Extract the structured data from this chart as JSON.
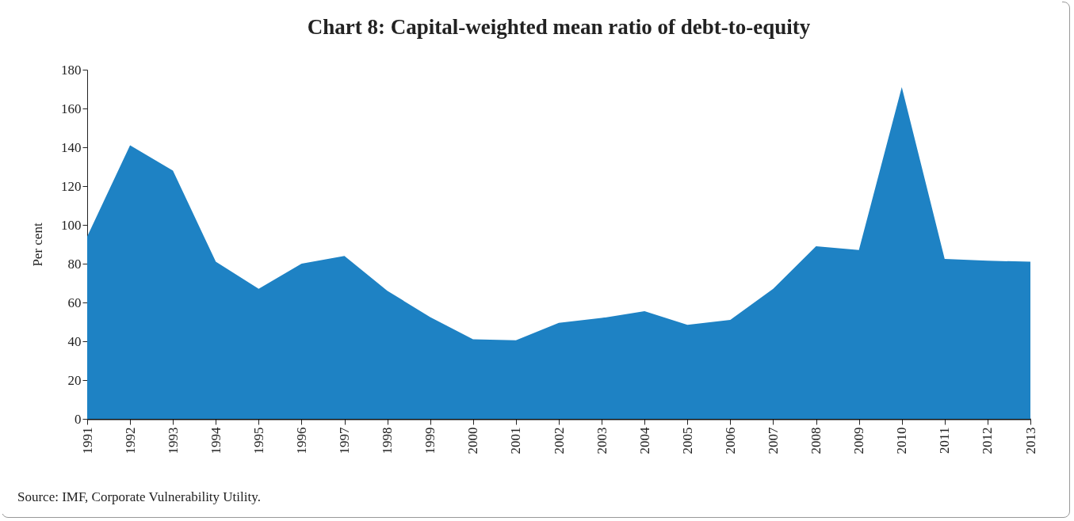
{
  "chart_data": {
    "type": "area",
    "title": "Chart 8: Capital-weighted mean ratio of debt-to-equity",
    "ylabel": "Per cent",
    "categories": [
      "1991",
      "1992",
      "1993",
      "1994",
      "1995",
      "1996",
      "1997",
      "1998",
      "1999",
      "2000",
      "2001",
      "2002",
      "2003",
      "2004",
      "2005",
      "2006",
      "2007",
      "2008",
      "2009",
      "2010",
      "2011",
      "2012",
      "2013"
    ],
    "series": [
      {
        "color": "#1e82c4",
        "values": [
          94,
          141,
          128,
          81,
          67,
          80,
          84,
          66,
          52.5,
          41,
          40.5,
          49.5,
          52,
          55.5,
          48.5,
          51,
          67,
          89,
          87,
          171,
          82.5,
          81.5,
          81
        ]
      }
    ],
    "ylim": [
      0,
      180
    ],
    "yticks": [
      0,
      20,
      40,
      60,
      80,
      100,
      120,
      140,
      160,
      180
    ],
    "grid": false,
    "legend": false,
    "annotations": [
      "Source: IMF, Corporate Vulnerability Utility."
    ]
  }
}
